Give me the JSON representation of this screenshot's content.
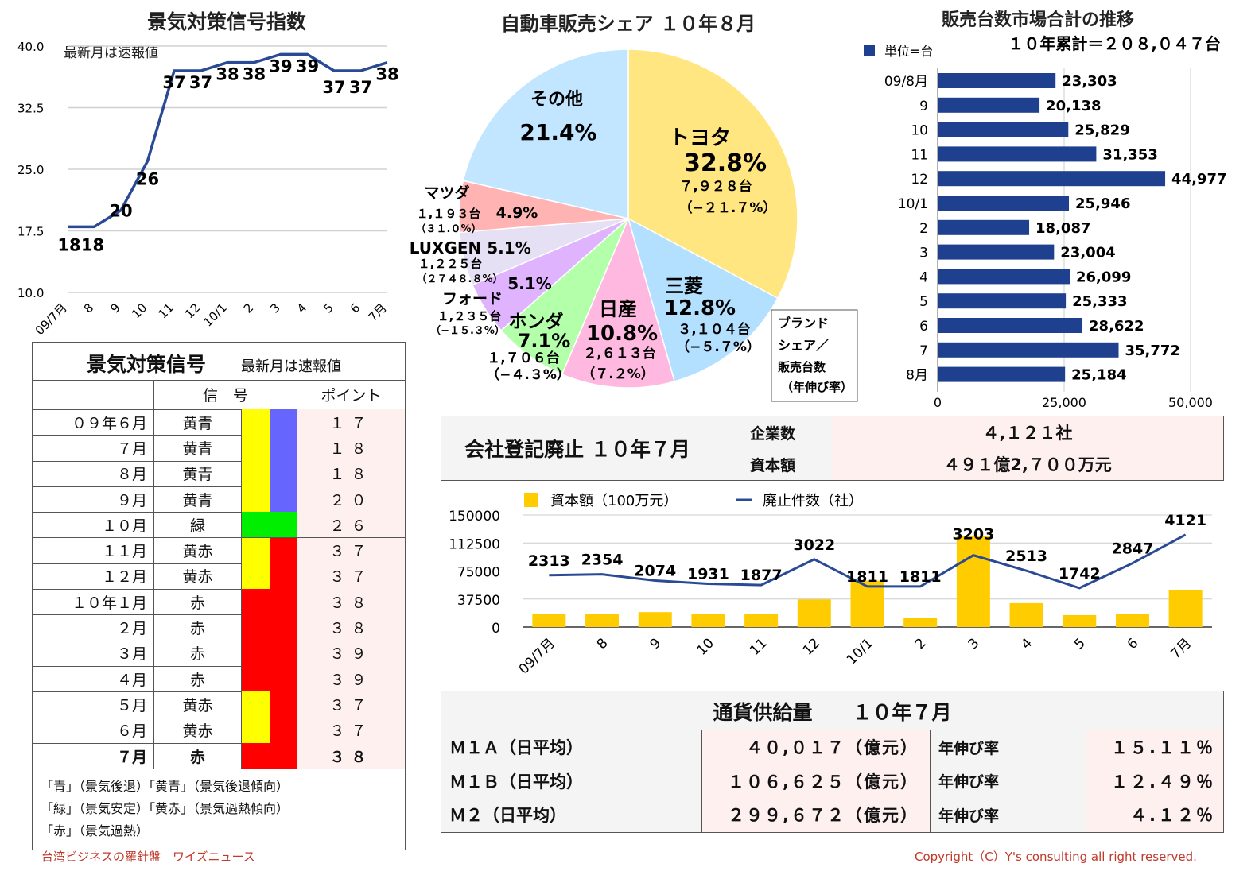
{
  "line_chart": {
    "title": "景気対策信号指数",
    "note": "最新月は速報値",
    "y_ticks": [
      "40.0",
      "32.5",
      "25.0",
      "17.5",
      "10.0"
    ]
  },
  "pie_chart": {
    "title": "自動車販売シェア １０年８月",
    "legend_box": [
      "ブランド",
      "シェア／",
      "販売台数",
      "（年伸び率）"
    ]
  },
  "bar_chart": {
    "title": "販売台数市場合計の推移",
    "unit": "単位=台",
    "total": "１０年累計＝２０８,０４７台",
    "x_ticks": [
      "0",
      "25,000",
      "50,000"
    ]
  },
  "signal_table": {
    "title": "景気対策信号",
    "note": "最新月は速報値",
    "col_signal": "信　号",
    "col_point": "ポイント",
    "rows": [
      {
        "month": "０９年６月",
        "signal": "黄青",
        "point": "１７",
        "c1": "#ffff00",
        "c2": "#6666ff"
      },
      {
        "month": "７月",
        "signal": "黄青",
        "point": "１８",
        "c1": "#ffff00",
        "c2": "#6666ff"
      },
      {
        "month": "８月",
        "signal": "黄青",
        "point": "１８",
        "c1": "#ffff00",
        "c2": "#6666ff"
      },
      {
        "month": "９月",
        "signal": "黄青",
        "point": "２０",
        "c1": "#ffff00",
        "c2": "#6666ff"
      },
      {
        "month": "１０月",
        "signal": "緑",
        "point": "２６",
        "c1": "#00ee00",
        "c2": "#00ee00"
      },
      {
        "month": "１１月",
        "signal": "黄赤",
        "point": "３７",
        "c1": "#ffff00",
        "c2": "#ff0000"
      },
      {
        "month": "１２月",
        "signal": "黄赤",
        "point": "３７",
        "c1": "#ffff00",
        "c2": "#ff0000"
      },
      {
        "month": "１０年１月",
        "signal": "赤",
        "point": "３８",
        "c1": "#ff0000",
        "c2": "#ff0000"
      },
      {
        "month": "２月",
        "signal": "赤",
        "point": "３８",
        "c1": "#ff0000",
        "c2": "#ff0000"
      },
      {
        "month": "３月",
        "signal": "赤",
        "point": "３９",
        "c1": "#ff0000",
        "c2": "#ff0000"
      },
      {
        "month": "４月",
        "signal": "赤",
        "point": "３９",
        "c1": "#ff0000",
        "c2": "#ff0000"
      },
      {
        "month": "５月",
        "signal": "黄赤",
        "point": "３７",
        "c1": "#ffff00",
        "c2": "#ff0000"
      },
      {
        "month": "６月",
        "signal": "黄赤",
        "point": "３７",
        "c1": "#ffff00",
        "c2": "#ff0000"
      },
      {
        "month": "７月",
        "signal": "赤",
        "point": "３８",
        "c1": "#ff0000",
        "c2": "#ff0000",
        "bold": true
      }
    ],
    "legend": [
      "「青」（景気後退）「黄青」（景気後退傾向）",
      "「緑」（景気安定）「黄赤」（景気過熱傾向）",
      "「赤」（景気過熱）"
    ]
  },
  "company_table": {
    "title": "会社登記廃止 １０年７月",
    "row1_label": "企業数",
    "row1_value": "４,１２１社",
    "row2_label": "資本額",
    "row2_value": "４９１億2,７００万元"
  },
  "combo_chart": {
    "legend_bar": "資本額（100万元）",
    "legend_line": "廃止件数（社）",
    "y_ticks": [
      "150000",
      "112500",
      "75000",
      "37500",
      "0"
    ]
  },
  "money_table": {
    "title": "通貨供給量　　１０年７月",
    "rate_label": "年伸び率",
    "rows": [
      {
        "name": "Ｍ１Ａ（日平均）",
        "value": "４０,０１７（億元）",
        "rate": "１５.１１％"
      },
      {
        "name": "Ｍ１Ｂ（日平均）",
        "value": "１０６,６２５（億元）",
        "rate": "１２.４９％"
      },
      {
        "name": "Ｍ２（日平均）",
        "value": "２９９,６７２（億元）",
        "rate": "４.１２％"
      }
    ]
  },
  "footer": {
    "left": "台湾ビジネスの羅針盤　ワイズニュース",
    "right": "Copyright（C）Y's consulting all right reserved."
  },
  "colors": {
    "navy": "#1f3f8f",
    "gold": "#ffcc00",
    "footer": "#c0392b"
  },
  "chart_data": [
    {
      "type": "line",
      "title": "景気対策信号指数",
      "categories": [
        "09/7月",
        "8",
        "9",
        "10",
        "11",
        "12",
        "10/1",
        "2",
        "3",
        "4",
        "5",
        "6",
        "7月"
      ],
      "values": [
        18,
        18,
        20,
        26,
        37,
        37,
        38,
        38,
        39,
        39,
        37,
        37,
        38
      ],
      "labels": [
        "18",
        "18",
        "20",
        "26",
        "37",
        "37",
        "38",
        "38",
        "39",
        "39",
        "37",
        "37",
        "38"
      ],
      "ylim": [
        10,
        40
      ]
    },
    {
      "type": "pie",
      "title": "自動車販売シェア １０年８月",
      "slices": [
        {
          "name": "トヨタ",
          "pct": "32.8%",
          "units": "７,９２８台",
          "yoy": "（−２１.７%）",
          "value": 32.8,
          "color": "#ffe680"
        },
        {
          "name": "三菱",
          "pct": "12.8%",
          "units": "３,１０４台",
          "yoy": "（−５.７%）",
          "value": 12.8,
          "color": "#b3e0ff"
        },
        {
          "name": "日産",
          "pct": "10.8%",
          "units": "２,６１３台",
          "yoy": "（７.２%）",
          "value": 10.8,
          "color": "#ffb8e0"
        },
        {
          "name": "ホンダ",
          "pct": "7.1%",
          "units": "１,７０６台",
          "yoy": "（−４.３%）",
          "value": 7.1,
          "color": "#b3ffaa"
        },
        {
          "name": "フォード",
          "pct": "5.1%",
          "units": "１,２３５台",
          "yoy": "（−１５.３%）",
          "value": 5.1,
          "color": "#e0b3ff"
        },
        {
          "name": "LUXGEN",
          "pct": "5.1%",
          "units": "１,２２５台",
          "yoy": "（２７４８.８%）",
          "value": 5.1,
          "color": "#e6e0f5"
        },
        {
          "name": "マツダ",
          "pct": "4.9%",
          "units": "１,１９３台",
          "yoy": "（３１.０%）",
          "value": 4.9,
          "color": "#ffb3b3"
        },
        {
          "name": "その他",
          "pct": "21.4%",
          "value": 21.4,
          "color": "#c2e6ff"
        }
      ]
    },
    {
      "type": "bar",
      "title": "販売台数市場合計の推移",
      "categories": [
        "09/8月",
        "9",
        "10",
        "11",
        "12",
        "10/1",
        "2",
        "3",
        "4",
        "5",
        "6",
        "7",
        "8月"
      ],
      "values": [
        23303,
        20138,
        25829,
        31353,
        44977,
        25946,
        18087,
        23004,
        26099,
        25333,
        28622,
        35772,
        25184
      ],
      "labels": [
        "23,303",
        "20,138",
        "25,829",
        "31,353",
        "44,977",
        "25,946",
        "18,087",
        "23,004",
        "26,099",
        "25,333",
        "28,622",
        "35,772",
        "25,184"
      ],
      "xlim": [
        0,
        50000
      ]
    },
    {
      "type": "bar",
      "categories": [
        "09/7月",
        "8",
        "9",
        "10",
        "11",
        "12",
        "10/1",
        "2",
        "3",
        "4",
        "5",
        "6",
        "7月"
      ],
      "series": [
        {
          "name": "資本額（100万元）",
          "type": "bar",
          "values": [
            17000,
            17000,
            20000,
            17000,
            17000,
            37000,
            62000,
            12000,
            122000,
            32000,
            16000,
            17000,
            49000
          ]
        },
        {
          "name": "廃止件数（社）",
          "type": "line",
          "values": [
            2313,
            2354,
            2074,
            1931,
            1877,
            3022,
            1811,
            1811,
            3203,
            2513,
            1742,
            2847,
            4121
          ],
          "labels": [
            "2313",
            "2354",
            "2074",
            "1931",
            "1877",
            "3022",
            "1811",
            "1811",
            "3203",
            "2513",
            "1742",
            "2847",
            "4121"
          ]
        }
      ],
      "ylim": [
        0,
        150000
      ]
    }
  ]
}
